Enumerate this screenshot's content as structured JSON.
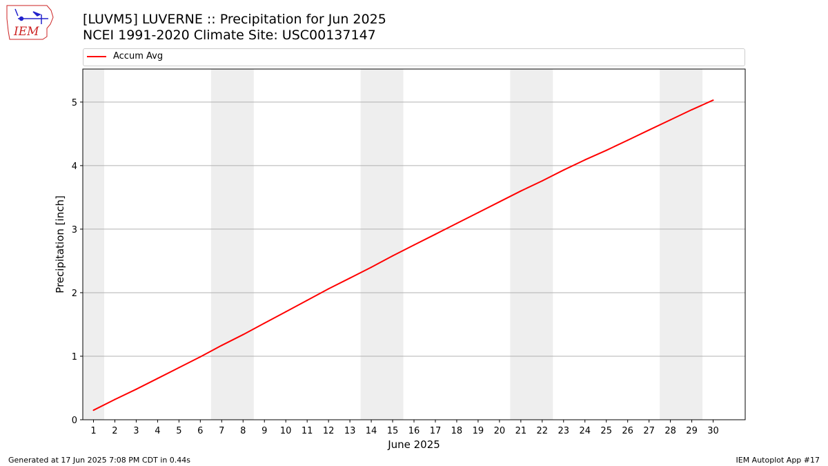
{
  "header": {
    "title_line1": "[LUVM5] LUVERNE :: Precipitation for Jun 2025",
    "title_line2": "NCEI 1991-2020 Climate Site: USC00137147",
    "logo_text": "IEM"
  },
  "footer": {
    "generated": "Generated at 17 Jun 2025 7:08 PM CDT in 0.44s",
    "app": "IEM Autoplot App #17"
  },
  "colors": {
    "series": "#ff0000",
    "weekend_shade": "#eeeeee",
    "grid": "#b0b0b0",
    "logo": "#cc2222"
  },
  "chart_data": {
    "type": "line",
    "xlabel": "June 2025",
    "ylabel": "Precipitation [inch]",
    "xlim": [
      0.5,
      31.5
    ],
    "ylim": [
      0,
      5.52
    ],
    "xticks": [
      1,
      2,
      3,
      4,
      5,
      6,
      7,
      8,
      9,
      10,
      11,
      12,
      13,
      14,
      15,
      16,
      17,
      18,
      19,
      20,
      21,
      22,
      23,
      24,
      25,
      26,
      27,
      28,
      29,
      30
    ],
    "yticks": [
      0,
      1,
      2,
      3,
      4,
      5
    ],
    "grid": "horizontal",
    "legend": "top, above plot",
    "weekend_bands": [
      [
        0.5,
        1.5
      ],
      [
        6.5,
        8.5
      ],
      [
        13.5,
        15.5
      ],
      [
        20.5,
        22.5
      ],
      [
        27.5,
        29.5
      ]
    ],
    "series": [
      {
        "name": "Accum Avg",
        "color": "#ff0000",
        "x": [
          1,
          2,
          3,
          4,
          5,
          6,
          7,
          8,
          9,
          10,
          11,
          12,
          13,
          14,
          15,
          16,
          17,
          18,
          19,
          20,
          21,
          22,
          23,
          24,
          25,
          26,
          27,
          28,
          29,
          30
        ],
        "values": [
          0.15,
          0.32,
          0.48,
          0.65,
          0.82,
          0.99,
          1.17,
          1.34,
          1.52,
          1.7,
          1.88,
          2.06,
          2.23,
          2.4,
          2.58,
          2.75,
          2.92,
          3.09,
          3.26,
          3.43,
          3.6,
          3.76,
          3.93,
          4.09,
          4.24,
          4.4,
          4.56,
          4.72,
          4.88,
          5.03
        ]
      }
    ]
  }
}
